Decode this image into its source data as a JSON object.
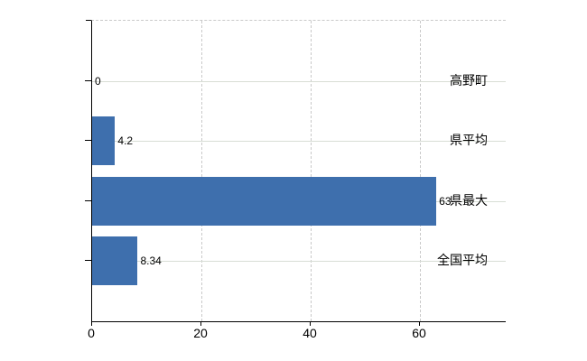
{
  "chart_data": {
    "type": "bar",
    "orientation": "horizontal",
    "title": "",
    "xlabel": "",
    "ylabel": "",
    "categories": [
      "高野町",
      "県平均",
      "県最大",
      "全国平均"
    ],
    "values": [
      0,
      4.2,
      63,
      8.34
    ],
    "value_labels": [
      "0",
      "4.2",
      "63",
      "8.34"
    ],
    "xlim": [
      0,
      75.7
    ],
    "xticks": [
      0,
      20,
      40,
      60
    ],
    "xtick_labels": [
      "0",
      "20",
      "40",
      "60"
    ],
    "legend": "none",
    "grid": {
      "vertical": "dashed",
      "horizontal": "solid",
      "top_border": "dashed"
    },
    "colors": {
      "bar": "#3e6fad",
      "vertical_gridline": "#c9c9c9",
      "horizontal_gridline": "#d8ded5",
      "axis": "#000000",
      "text": "#000000",
      "background": "#ffffff"
    }
  }
}
